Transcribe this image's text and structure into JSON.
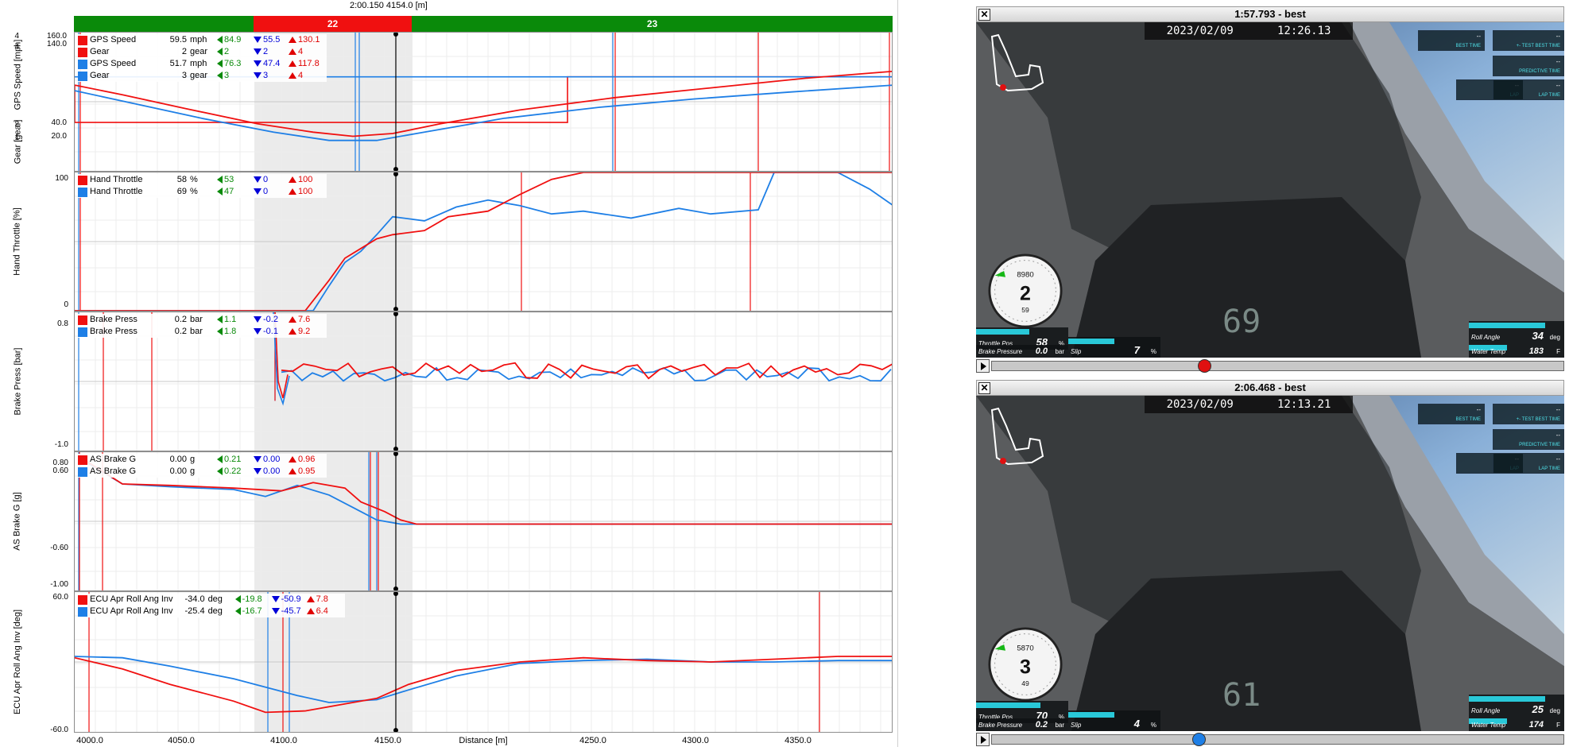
{
  "cursor_readout": "2:00.150   4154.0 [m]",
  "segments": [
    {
      "label": "",
      "color": "#0a8a0a"
    },
    {
      "label": "22",
      "color": "#f01010"
    },
    {
      "label": "23",
      "color": "#0a8a0a"
    }
  ],
  "colors": {
    "red": "#f01010",
    "blue": "#1e7fe6",
    "highlight": "#ebebeb"
  },
  "panels": [
    {
      "ylabel": "GPS Speed [mph]",
      "ylabel2": "Gear [gear]",
      "yticks": [
        "160.0",
        "140.0",
        "40.0",
        "20.0"
      ],
      "yticks2": [
        "4",
        "4",
        "2",
        "1"
      ],
      "legend": [
        {
          "color": "red",
          "name": "GPS Speed",
          "value": "59.5",
          "unit": "mph",
          "min": "84.9",
          "mid": "55.5",
          "max": "130.1"
        },
        {
          "color": "red",
          "name": "Gear",
          "value": "2",
          "unit": "gear",
          "min": "2",
          "mid": "2",
          "max": "4"
        },
        {
          "color": "blue",
          "name": "GPS Speed",
          "value": "51.7",
          "unit": "mph",
          "min": "76.3",
          "mid": "47.4",
          "max": "117.8"
        },
        {
          "color": "blue",
          "name": "Gear",
          "value": "3",
          "unit": "gear",
          "min": "3",
          "mid": "3",
          "max": "4"
        }
      ]
    },
    {
      "ylabel": "Hand Throttle [%]",
      "yticks": [
        "100",
        "0"
      ],
      "legend": [
        {
          "color": "red",
          "name": "Hand Throttle",
          "value": "58",
          "unit": "%",
          "min": "53",
          "mid": "0",
          "max": "100"
        },
        {
          "color": "blue",
          "name": "Hand Throttle",
          "value": "69",
          "unit": "%",
          "min": "47",
          "mid": "0",
          "max": "100"
        }
      ]
    },
    {
      "ylabel": "Brake Press [bar]",
      "yticks": [
        "0.8",
        "-1.0"
      ],
      "legend": [
        {
          "color": "red",
          "name": "Brake Press",
          "value": "0.2",
          "unit": "bar",
          "min": "1.1",
          "mid": "-0.2",
          "max": "7.6"
        },
        {
          "color": "blue",
          "name": "Brake Press",
          "value": "0.2",
          "unit": "bar",
          "min": "1.8",
          "mid": "-0.1",
          "max": "9.2"
        }
      ]
    },
    {
      "ylabel": "AS Brake G [g]",
      "yticks": [
        "0.80",
        "0.60",
        "-0.60",
        "-1.00"
      ],
      "legend": [
        {
          "color": "red",
          "name": "AS Brake G",
          "value": "0.00",
          "unit": "g",
          "min": "0.21",
          "mid": "0.00",
          "max": "0.96"
        },
        {
          "color": "blue",
          "name": "AS Brake G",
          "value": "0.00",
          "unit": "g",
          "min": "0.22",
          "mid": "0.00",
          "max": "0.95"
        }
      ]
    },
    {
      "ylabel": "ECU Apr Roll Ang Inv [deg]",
      "yticks": [
        "60.0",
        "-60.0"
      ],
      "legend": [
        {
          "color": "red",
          "name": "ECU Apr Roll Ang Inv",
          "value": "-34.0",
          "unit": "deg",
          "min": "-19.8",
          "mid": "-50.9",
          "max": "7.8"
        },
        {
          "color": "blue",
          "name": "ECU Apr Roll Ang Inv",
          "value": "-25.4",
          "unit": "deg",
          "min": "-16.7",
          "mid": "-45.7",
          "max": "6.4"
        }
      ]
    }
  ],
  "xaxis": {
    "label": "Distance [m]",
    "ticks": [
      "4000.0",
      "4050.0",
      "4100.0",
      "4150.0",
      "4250.0",
      "4300.0",
      "4350.0"
    ]
  },
  "videos": [
    {
      "title": "1:57.793 - best",
      "close": "✕",
      "date": "2023/02/09",
      "time": "12:26.13",
      "rpm": "8980",
      "gear": "2",
      "speed": "59",
      "throttle_label": "Throttle Pos",
      "throttle_value": "58",
      "throttle_unit": "%",
      "throttle_fill": 0.58,
      "brake_label": "Brake Pressure",
      "brake_value": "0.0",
      "brake_unit": "bar",
      "slip_label": "Slip",
      "slip_value": "7",
      "slip_unit": "%",
      "roll_label": "Roll Angle",
      "roll_value": "34",
      "roll_unit": "deg",
      "water_label": "Water Temp",
      "water_value": "183",
      "water_unit": "F",
      "dash": "69",
      "seek": 0.37,
      "knob_color": "#e01010"
    },
    {
      "title": "2:06.468 - best",
      "close": "✕",
      "date": "2023/02/09",
      "time": "12:13.21",
      "rpm": "5870",
      "gear": "3",
      "speed": "49",
      "throttle_label": "Throttle Pos",
      "throttle_value": "70",
      "throttle_unit": "%",
      "throttle_fill": 0.7,
      "brake_label": "Brake Pressure",
      "brake_value": "0.2",
      "brake_unit": "bar",
      "slip_label": "Slip",
      "slip_value": "4",
      "slip_unit": "%",
      "roll_label": "Roll Angle",
      "roll_value": "25",
      "roll_unit": "deg",
      "water_label": "Water Temp",
      "water_value": "174",
      "water_unit": "F",
      "dash": "61",
      "seek": 0.36,
      "knob_color": "#1e7fe6"
    }
  ],
  "hud_labels": [
    "BEST TIME",
    "+- TEST BEST TIME",
    "PREDICTIVE TIME",
    "LAP",
    "LAP TIME"
  ],
  "hud_value": "--"
}
